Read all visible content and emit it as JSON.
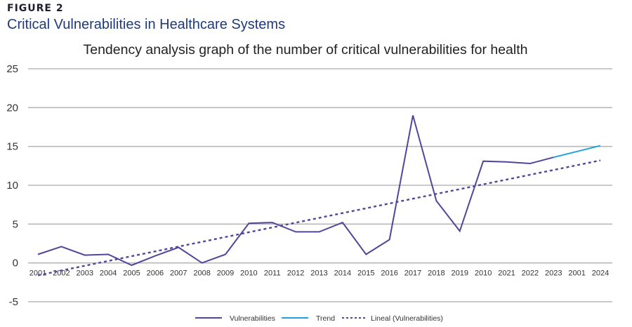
{
  "figure": {
    "label": "FIGURE 2",
    "title": "Critical Vulnerabilities in Healthcare Systems"
  },
  "colors": {
    "vulnerabilities": "#54459a",
    "trend": "#1fa3dc",
    "lineal": "#54459a",
    "grid": "#b8b8b8",
    "figure_title": "#1f3a7a"
  },
  "chart_data": {
    "type": "line",
    "title": "Tendency analysis graph of the number of critical vulnerabilities for health",
    "xlabel": "",
    "ylabel": "",
    "ylim": [
      -5,
      25
    ],
    "yticks": [
      25,
      20,
      15,
      10,
      5,
      0,
      -5
    ],
    "grid": true,
    "legend_position": "bottom",
    "categories": [
      "2001",
      "2002",
      "2003",
      "2004",
      "2005",
      "2006",
      "2007",
      "2008",
      "2009",
      "2010",
      "2011",
      "2012",
      "2013",
      "2014",
      "2015",
      "2016",
      "2017",
      "2018",
      "2019",
      "2010",
      "2021",
      "2022",
      "2023",
      "2001",
      "2024"
    ],
    "series": [
      {
        "name": "Vulnerabilities",
        "style": "solid",
        "values": [
          1.1,
          2.1,
          1.0,
          1.1,
          -0.3,
          0.9,
          2.0,
          0.0,
          1.1,
          5.1,
          5.2,
          4.0,
          4.0,
          5.2,
          1.1,
          3.0,
          19.0,
          8.0,
          4.1,
          13.1,
          13.0,
          12.8,
          13.6,
          null,
          null
        ]
      },
      {
        "name": "Trend",
        "style": "solid",
        "values": [
          null,
          null,
          null,
          null,
          null,
          null,
          null,
          null,
          null,
          null,
          null,
          null,
          null,
          null,
          null,
          null,
          null,
          null,
          null,
          null,
          null,
          null,
          13.6,
          null,
          15.1
        ]
      },
      {
        "name": "Lineal (Vulnerabilities)",
        "style": "dashed",
        "values": [
          -1.6,
          null,
          null,
          null,
          null,
          null,
          null,
          null,
          null,
          null,
          null,
          null,
          null,
          null,
          null,
          null,
          null,
          null,
          null,
          null,
          null,
          null,
          null,
          null,
          13.2
        ]
      }
    ]
  }
}
